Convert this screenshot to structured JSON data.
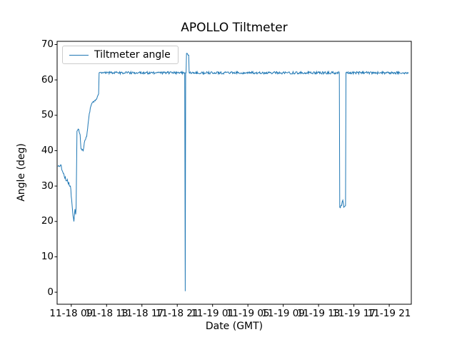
{
  "figure": {
    "background": "#ffffff"
  },
  "chart_data": {
    "type": "line",
    "title": "APOLLO Tiltmeter",
    "xlabel": "Date (GMT)",
    "ylabel": "Angle (deg)",
    "legend": {
      "position": "upper left",
      "entries": [
        "Tiltmeter angle"
      ]
    },
    "line_color": "#1f77b4",
    "grid": false,
    "x_unit": "hours since 11-18 00:00 GMT",
    "xlim": [
      7.4,
      47.5
    ],
    "ylim": [
      -3.4,
      70.9
    ],
    "x_ticks": [
      9,
      13,
      17,
      21,
      25,
      29,
      33,
      37,
      41,
      45
    ],
    "x_tick_labels": [
      "11-18 09",
      "11-18 13",
      "11-18 17",
      "11-18 21",
      "11-19 01",
      "11-19 05",
      "11-19 09",
      "11-19 13",
      "11-19 17",
      "11-19 21"
    ],
    "y_ticks": [
      0,
      10,
      20,
      30,
      40,
      50,
      60,
      70
    ],
    "y_tick_labels": [
      "0",
      "10",
      "20",
      "30",
      "40",
      "50",
      "60",
      "70"
    ],
    "keypoints_note": "each point = [hour, angle_deg, noise_amp_for_following_segment]",
    "keypoints": [
      [
        7.5,
        35.5,
        0.5
      ],
      [
        7.8,
        36.0,
        0.5
      ],
      [
        8.1,
        33.5,
        0.6
      ],
      [
        8.5,
        31.5,
        0.6
      ],
      [
        8.9,
        30.0,
        0.4
      ],
      [
        9.05,
        26.0,
        0.3
      ],
      [
        9.2,
        21.5,
        0.3
      ],
      [
        9.3,
        20.0,
        0.2
      ],
      [
        9.42,
        23.5,
        0.2
      ],
      [
        9.5,
        22.0,
        0.15
      ],
      [
        9.55,
        24.0,
        0.1
      ],
      [
        9.65,
        45.5,
        0.3
      ],
      [
        9.85,
        46.0,
        0.3
      ],
      [
        10.0,
        44.5,
        0.2
      ],
      [
        10.1,
        40.5,
        0.3
      ],
      [
        10.35,
        40.0,
        0.3
      ],
      [
        10.55,
        43.0,
        0.3
      ],
      [
        10.75,
        44.0,
        0.3
      ],
      [
        10.9,
        47.5,
        0.3
      ],
      [
        11.0,
        49.5,
        0.3
      ],
      [
        11.15,
        52.0,
        0.25
      ],
      [
        11.35,
        53.5,
        0.25
      ],
      [
        11.6,
        54.0,
        0.25
      ],
      [
        11.85,
        54.5,
        0.25
      ],
      [
        12.0,
        55.5,
        0.2
      ],
      [
        12.1,
        56.0,
        0.0
      ],
      [
        12.15,
        62.0,
        0.35
      ],
      [
        21.85,
        62.0,
        0.0
      ],
      [
        21.9,
        0.3,
        0.0
      ],
      [
        21.95,
        62.0,
        0.0
      ],
      [
        22.0,
        62.0,
        0.2
      ],
      [
        22.05,
        67.5,
        0.3
      ],
      [
        22.3,
        67.0,
        0.0
      ],
      [
        22.35,
        62.0,
        0.35
      ],
      [
        39.35,
        62.0,
        0.0
      ],
      [
        39.4,
        24.0,
        0.3
      ],
      [
        39.6,
        24.5,
        0.3
      ],
      [
        39.75,
        26.0,
        0.2
      ],
      [
        39.85,
        24.0,
        0.2
      ],
      [
        40.05,
        24.5,
        0.0
      ],
      [
        40.1,
        62.0,
        0.35
      ],
      [
        47.2,
        62.0,
        0.0
      ]
    ]
  }
}
